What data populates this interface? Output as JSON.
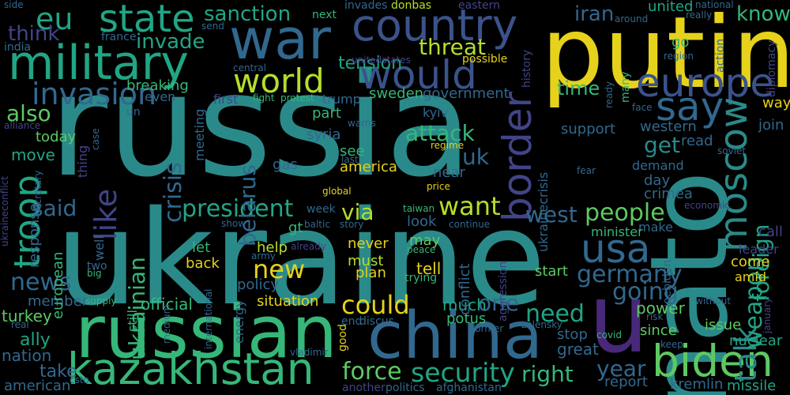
{
  "background": "#000000",
  "palette": {
    "yellow": "#e6d21a",
    "lime": "#b5de2b",
    "green": "#5ec962",
    "teal": "#35b779",
    "seafoam": "#21a585",
    "cyan": "#2a8a8a",
    "steel": "#31688e",
    "blue": "#3b528b",
    "indigo": "#414487",
    "purple": "#482878",
    "deep": "#440154"
  },
  "words": [
    {
      "text": "russia",
      "color": "#2a8a8a"
    },
    {
      "text": "ukraine",
      "color": "#2a8a8a"
    },
    {
      "text": "putin",
      "color": "#e6d21a"
    },
    {
      "text": "nato",
      "color": "#2a8a8a"
    },
    {
      "text": "china",
      "color": "#31688e"
    },
    {
      "text": "russian",
      "color": "#35b779"
    },
    {
      "text": "u",
      "color": "#482878"
    },
    {
      "text": "war",
      "color": "#31688e"
    },
    {
      "text": "military",
      "color": "#21a585"
    },
    {
      "text": "kazakhstan",
      "color": "#35b779"
    },
    {
      "text": "biden",
      "color": "#5ec962"
    },
    {
      "text": "country",
      "color": "#3b528b"
    },
    {
      "text": "state",
      "color": "#21a585"
    },
    {
      "text": "europe",
      "color": "#3b528b"
    },
    {
      "text": "would",
      "color": "#3b528b"
    },
    {
      "text": "world",
      "color": "#b5de2b"
    },
    {
      "text": "moscow",
      "color": "#2a8a8a"
    },
    {
      "text": "usa",
      "color": "#31688e"
    },
    {
      "text": "say",
      "color": "#31688e"
    },
    {
      "text": "border",
      "color": "#414487"
    },
    {
      "text": "troop",
      "color": "#21a585"
    },
    {
      "text": "invasion",
      "color": "#31688e"
    },
    {
      "text": "eu",
      "color": "#21a585"
    },
    {
      "text": "like",
      "color": "#414487"
    },
    {
      "text": "talk",
      "color": "#2a8a8a"
    },
    {
      "text": "security",
      "color": "#21a585"
    },
    {
      "text": "force",
      "color": "#5ec962"
    },
    {
      "text": "want",
      "color": "#b5de2b"
    },
    {
      "text": "president",
      "color": "#21a585"
    },
    {
      "text": "could",
      "color": "#e6d21a"
    },
    {
      "text": "new",
      "color": "#e6d21a"
    },
    {
      "text": "people",
      "color": "#5ec962"
    },
    {
      "text": "germany",
      "color": "#31688e"
    },
    {
      "text": "going",
      "color": "#31688e"
    },
    {
      "text": "need",
      "color": "#21a585"
    },
    {
      "text": "news",
      "color": "#31688e"
    },
    {
      "text": "attack",
      "color": "#35b779"
    },
    {
      "text": "crisis",
      "color": "#31688e"
    },
    {
      "text": "west",
      "color": "#31688e"
    },
    {
      "text": "weapon",
      "color": "#21a585"
    },
    {
      "text": "foreign",
      "color": "#21a585"
    },
    {
      "text": "ukrainian",
      "color": "#35b779"
    },
    {
      "text": "belarus",
      "color": "#31688e"
    },
    {
      "text": "year",
      "color": "#31688e"
    },
    {
      "text": "right",
      "color": "#35b779"
    },
    {
      "text": "one",
      "color": "#31688e"
    },
    {
      "text": "get",
      "color": "#2a8a8a"
    },
    {
      "text": "uk",
      "color": "#31688e"
    },
    {
      "text": "via",
      "color": "#b5de2b"
    },
    {
      "text": "said",
      "color": "#31688e"
    },
    {
      "text": "also",
      "color": "#5ec962"
    },
    {
      "text": "threat",
      "color": "#b5de2b"
    },
    {
      "text": "tension",
      "color": "#21a585"
    },
    {
      "text": "invade",
      "color": "#21a585"
    },
    {
      "text": "think",
      "color": "#414487"
    },
    {
      "text": "sanction",
      "color": "#21a585"
    },
    {
      "text": "iran",
      "color": "#31688e"
    },
    {
      "text": "know",
      "color": "#35b779"
    },
    {
      "text": "time",
      "color": "#35b779"
    },
    {
      "text": "take",
      "color": "#31688e"
    },
    {
      "text": "ally",
      "color": "#21a585"
    },
    {
      "text": "nation",
      "color": "#31688e"
    },
    {
      "text": "american",
      "color": "#31688e"
    },
    {
      "text": "turkey",
      "color": "#5ec962"
    },
    {
      "text": "member",
      "color": "#31688e"
    },
    {
      "text": "move",
      "color": "#21a585"
    },
    {
      "text": "today",
      "color": "#5ec962"
    },
    {
      "text": "european",
      "color": "#35b779"
    },
    {
      "text": "situation",
      "color": "#e6d21a"
    },
    {
      "text": "official",
      "color": "#35b779"
    },
    {
      "text": "policy",
      "color": "#31688e"
    },
    {
      "text": "help",
      "color": "#b5de2b"
    },
    {
      "text": "back",
      "color": "#e6d21a"
    },
    {
      "text": "let",
      "color": "#35b779"
    },
    {
      "text": "never",
      "color": "#e6d21a"
    },
    {
      "text": "must",
      "color": "#b5de2b"
    },
    {
      "text": "plan",
      "color": "#e6d21a"
    },
    {
      "text": "may",
      "color": "#5ec962"
    },
    {
      "text": "tell",
      "color": "#e6d21a"
    },
    {
      "text": "trying",
      "color": "#35b779"
    },
    {
      "text": "much",
      "color": "#21a585"
    },
    {
      "text": "potus",
      "color": "#35b779"
    },
    {
      "text": "conflict",
      "color": "#31688e"
    },
    {
      "text": "start",
      "color": "#5ec962"
    },
    {
      "text": "report",
      "color": "#31688e"
    },
    {
      "text": "great",
      "color": "#31688e"
    },
    {
      "text": "stop",
      "color": "#31688e"
    },
    {
      "text": "power",
      "color": "#5ec962"
    },
    {
      "text": "since",
      "color": "#5ec962"
    },
    {
      "text": "issue",
      "color": "#5ec962"
    },
    {
      "text": "nuclear",
      "color": "#21a585"
    },
    {
      "text": "kremlin",
      "color": "#31688e"
    },
    {
      "text": "missile",
      "color": "#21a585"
    },
    {
      "text": "come",
      "color": "#e6d21a"
    },
    {
      "text": "amid",
      "color": "#e6d21a"
    },
    {
      "text": "call",
      "color": "#414487"
    },
    {
      "text": "leader",
      "color": "#414487"
    },
    {
      "text": "make",
      "color": "#31688e"
    },
    {
      "text": "minister",
      "color": "#35b779"
    },
    {
      "text": "united",
      "color": "#21a585"
    },
    {
      "text": "crimea",
      "color": "#31688e"
    },
    {
      "text": "day",
      "color": "#31688e"
    },
    {
      "text": "demand",
      "color": "#31688e"
    },
    {
      "text": "western",
      "color": "#31688e"
    },
    {
      "text": "support",
      "color": "#31688e"
    },
    {
      "text": "join",
      "color": "#31688e"
    },
    {
      "text": "read",
      "color": "#31688e"
    },
    {
      "text": "way",
      "color": "#e6d21a"
    },
    {
      "text": "go",
      "color": "#35b779"
    },
    {
      "text": "america",
      "color": "#e6d21a"
    },
    {
      "text": "see",
      "color": "#35b779"
    },
    {
      "text": "gas",
      "color": "#31688e"
    },
    {
      "text": "near",
      "color": "#31688e"
    },
    {
      "text": "syria",
      "color": "#31688e"
    },
    {
      "text": "part",
      "color": "#35b779"
    },
    {
      "text": "sweden",
      "color": "#35b779"
    },
    {
      "text": "government",
      "color": "#31688e"
    },
    {
      "text": "kyiv",
      "color": "#31688e"
    },
    {
      "text": "breaking",
      "color": "#35b779"
    },
    {
      "text": "even",
      "color": "#31688e"
    },
    {
      "text": "first",
      "color": "#414487"
    },
    {
      "text": "trump",
      "color": "#31688e"
    },
    {
      "text": "meeting",
      "color": "#31688e"
    },
    {
      "text": "ukrainecrisis",
      "color": "#31688e"
    },
    {
      "text": "history",
      "color": "#414487"
    },
    {
      "text": "possible",
      "color": "#e6d21a"
    },
    {
      "text": "eastern",
      "color": "#414487"
    },
    {
      "text": "invades",
      "color": "#31688e"
    },
    {
      "text": "donbas",
      "color": "#b5de2b"
    },
    {
      "text": "france",
      "color": "#31688e"
    },
    {
      "text": "india",
      "color": "#31688e"
    },
    {
      "text": "next",
      "color": "#35b779"
    },
    {
      "text": "send",
      "color": "#31688e"
    },
    {
      "text": "side",
      "color": "#31688e"
    },
    {
      "text": "around",
      "color": "#31688e"
    },
    {
      "text": "really",
      "color": "#31688e"
    },
    {
      "text": "national",
      "color": "#31688e"
    },
    {
      "text": "diplomacy",
      "color": "#414487"
    },
    {
      "text": "region",
      "color": "#31688e"
    },
    {
      "text": "action",
      "color": "#31688e"
    },
    {
      "text": "face",
      "color": "#31688e"
    },
    {
      "text": "ready",
      "color": "#31688e"
    },
    {
      "text": "many",
      "color": "#35b779"
    },
    {
      "text": "alliance",
      "color": "#414487"
    },
    {
      "text": "case",
      "color": "#31688e"
    },
    {
      "text": "thing",
      "color": "#414487"
    },
    {
      "text": "two",
      "color": "#31688e"
    },
    {
      "text": "big",
      "color": "#35b779"
    },
    {
      "text": "well",
      "color": "#31688e"
    },
    {
      "text": "response",
      "color": "#31688e"
    },
    {
      "text": "secretary",
      "color": "#31688e"
    },
    {
      "text": "ukraineconflict",
      "color": "#414487"
    },
    {
      "text": "supply",
      "color": "#35b779"
    },
    {
      "text": "still",
      "color": "#35b779"
    },
    {
      "text": "medium",
      "color": "#31688e"
    },
    {
      "text": "international",
      "color": "#31688e"
    },
    {
      "text": "energy",
      "color": "#31688e"
    },
    {
      "text": "vladimir",
      "color": "#31688e"
    },
    {
      "text": "good",
      "color": "#e6d21a"
    },
    {
      "text": "end",
      "color": "#31688e"
    },
    {
      "text": "discus",
      "color": "#31688e"
    },
    {
      "text": "csto",
      "color": "#31688e"
    },
    {
      "text": "real",
      "color": "#31688e"
    },
    {
      "text": "another",
      "color": "#414487"
    },
    {
      "text": "politics",
      "color": "#31688e"
    },
    {
      "text": "afghanistan",
      "color": "#31688e"
    },
    {
      "text": "former",
      "color": "#31688e"
    },
    {
      "text": "zelensky",
      "color": "#31688e"
    },
    {
      "text": "covid",
      "color": "#35b779"
    },
    {
      "text": "risk",
      "color": "#31688e"
    },
    {
      "text": "keep",
      "color": "#31688e"
    },
    {
      "text": "without",
      "color": "#31688e"
    },
    {
      "text": "january",
      "color": "#414487"
    },
    {
      "text": "economic",
      "color": "#414487"
    },
    {
      "text": "joebiden",
      "color": "#31688e"
    },
    {
      "text": "soviet",
      "color": "#31688e"
    },
    {
      "text": "fear",
      "color": "#31688e"
    },
    {
      "text": "global",
      "color": "#e6d21a"
    },
    {
      "text": "price",
      "color": "#e6d21a"
    },
    {
      "text": "regime",
      "color": "#e6d21a"
    },
    {
      "text": "last",
      "color": "#31688e"
    },
    {
      "text": "warns",
      "color": "#31688e"
    },
    {
      "text": "taiwan",
      "color": "#35b779"
    },
    {
      "text": "baltic",
      "color": "#31688e"
    },
    {
      "text": "story",
      "color": "#31688e"
    },
    {
      "text": "continue",
      "color": "#31688e"
    },
    {
      "text": "already",
      "color": "#414487"
    },
    {
      "text": "army",
      "color": "#31688e"
    },
    {
      "text": "peace",
      "color": "#35b779"
    },
    {
      "text": "show",
      "color": "#31688e"
    },
    {
      "text": "week",
      "color": "#31688e"
    },
    {
      "text": "gt",
      "color": "#35b779"
    },
    {
      "text": "look",
      "color": "#31688e"
    },
    {
      "text": "aggression",
      "color": "#414487"
    },
    {
      "text": "central",
      "color": "#31688e"
    },
    {
      "text": "fight",
      "color": "#35b779"
    },
    {
      "text": "protest",
      "color": "#35b779"
    },
    {
      "text": "unitedstates",
      "color": "#414487"
    },
    {
      "text": "un",
      "color": "#31688e"
    }
  ]
}
